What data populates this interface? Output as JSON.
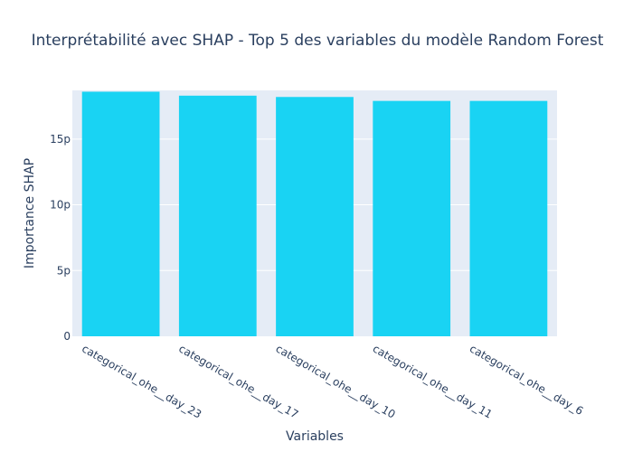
{
  "chart_data": {
    "type": "bar",
    "title": "Interprétabilité avec SHAP - Top 5 des variables du modèle Random Forest",
    "xlabel": "Variables",
    "ylabel": "Importance SHAP",
    "categories": [
      "categorical_ohe__day_23",
      "categorical_ohe__day_17",
      "categorical_ohe__day_10",
      "categorical_ohe__day_11",
      "categorical_ohe__day_6"
    ],
    "values": [
      1.86e-11,
      1.83e-11,
      1.82e-11,
      1.79e-11,
      1.79e-11
    ],
    "ylim": [
      0,
      1.87e-11
    ],
    "yticks": [
      {
        "value": 0,
        "label": "0"
      },
      {
        "value": 5e-12,
        "label": "5p"
      },
      {
        "value": 1e-11,
        "label": "10p"
      },
      {
        "value": 1.5e-11,
        "label": "15p"
      }
    ],
    "grid": true,
    "legend": "none",
    "colors": {
      "bar": "#19d3f3",
      "plot_bg": "#e5ecf6",
      "text": "#2a3f5f",
      "grid": "#ffffff"
    }
  }
}
